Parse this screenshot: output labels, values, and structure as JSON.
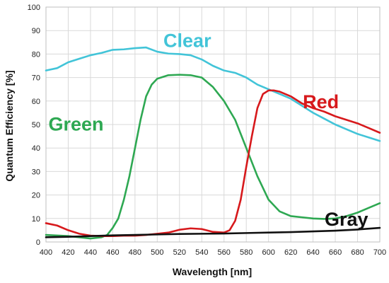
{
  "chart_data": {
    "type": "line",
    "xlabel": "Wavelength [nm]",
    "ylabel": "Quantum Efficiency [%]",
    "xlim": [
      400,
      700
    ],
    "ylim": [
      0,
      100
    ],
    "x_ticks": [
      400,
      420,
      440,
      460,
      480,
      500,
      520,
      540,
      560,
      580,
      600,
      620,
      640,
      660,
      680,
      700
    ],
    "y_ticks": [
      0,
      10,
      20,
      30,
      40,
      50,
      60,
      70,
      80,
      90,
      100
    ],
    "grid": true,
    "legend": "none",
    "series": [
      {
        "name": "Clear",
        "color": "#42c4d8",
        "points": [
          [
            400,
            73
          ],
          [
            410,
            74
          ],
          [
            420,
            76.5
          ],
          [
            430,
            78
          ],
          [
            440,
            79.5
          ],
          [
            450,
            80.5
          ],
          [
            460,
            81.8
          ],
          [
            470,
            82
          ],
          [
            480,
            82.5
          ],
          [
            490,
            82.8
          ],
          [
            500,
            81
          ],
          [
            510,
            80.2
          ],
          [
            520,
            80
          ],
          [
            530,
            79.5
          ],
          [
            540,
            77.7
          ],
          [
            550,
            75
          ],
          [
            560,
            73
          ],
          [
            570,
            72
          ],
          [
            580,
            70
          ],
          [
            590,
            67
          ],
          [
            600,
            65
          ],
          [
            610,
            63
          ],
          [
            620,
            61
          ],
          [
            630,
            58
          ],
          [
            640,
            55
          ],
          [
            650,
            52.5
          ],
          [
            660,
            50
          ],
          [
            670,
            48
          ],
          [
            680,
            46
          ],
          [
            690,
            44.5
          ],
          [
            700,
            43
          ]
        ]
      },
      {
        "name": "Green",
        "color": "#2ea852",
        "points": [
          [
            400,
            3
          ],
          [
            420,
            2.5
          ],
          [
            440,
            1.5
          ],
          [
            450,
            2
          ],
          [
            455,
            3
          ],
          [
            460,
            6
          ],
          [
            465,
            10
          ],
          [
            470,
            18
          ],
          [
            475,
            28
          ],
          [
            480,
            40
          ],
          [
            485,
            52
          ],
          [
            490,
            62
          ],
          [
            495,
            67
          ],
          [
            500,
            69.5
          ],
          [
            510,
            71
          ],
          [
            520,
            71.2
          ],
          [
            530,
            71
          ],
          [
            540,
            70
          ],
          [
            550,
            66
          ],
          [
            560,
            60
          ],
          [
            570,
            52
          ],
          [
            575,
            46
          ],
          [
            580,
            40
          ],
          [
            590,
            28
          ],
          [
            600,
            18
          ],
          [
            610,
            13
          ],
          [
            620,
            11
          ],
          [
            630,
            10.5
          ],
          [
            640,
            10
          ],
          [
            650,
            9.8
          ],
          [
            660,
            10
          ],
          [
            670,
            11
          ],
          [
            680,
            12.5
          ],
          [
            690,
            14.5
          ],
          [
            700,
            16.5
          ]
        ]
      },
      {
        "name": "Red",
        "color": "#d7191c",
        "points": [
          [
            400,
            8
          ],
          [
            410,
            7
          ],
          [
            420,
            5
          ],
          [
            430,
            3.5
          ],
          [
            440,
            2.7
          ],
          [
            450,
            2.5
          ],
          [
            460,
            2.5
          ],
          [
            470,
            2.7
          ],
          [
            480,
            2.7
          ],
          [
            490,
            3
          ],
          [
            500,
            3.5
          ],
          [
            510,
            4
          ],
          [
            520,
            5.2
          ],
          [
            530,
            5.8
          ],
          [
            540,
            5.5
          ],
          [
            550,
            4.3
          ],
          [
            560,
            4
          ],
          [
            565,
            5
          ],
          [
            570,
            9
          ],
          [
            575,
            18
          ],
          [
            580,
            32
          ],
          [
            585,
            45
          ],
          [
            590,
            57
          ],
          [
            595,
            63
          ],
          [
            600,
            64.5
          ],
          [
            605,
            64.5
          ],
          [
            610,
            64
          ],
          [
            620,
            62
          ],
          [
            630,
            59
          ],
          [
            640,
            57
          ],
          [
            650,
            55.5
          ],
          [
            660,
            53.5
          ],
          [
            670,
            52
          ],
          [
            680,
            50.5
          ],
          [
            690,
            48.5
          ],
          [
            700,
            46.5
          ]
        ]
      },
      {
        "name": "Gray",
        "color": "#111111",
        "points": [
          [
            400,
            2
          ],
          [
            420,
            2.2
          ],
          [
            440,
            2.5
          ],
          [
            460,
            2.8
          ],
          [
            480,
            3
          ],
          [
            500,
            3.2
          ],
          [
            520,
            3.4
          ],
          [
            540,
            3.5
          ],
          [
            560,
            3.6
          ],
          [
            580,
            3.8
          ],
          [
            600,
            4
          ],
          [
            620,
            4.2
          ],
          [
            640,
            4.5
          ],
          [
            660,
            4.8
          ],
          [
            680,
            5.3
          ],
          [
            700,
            6
          ]
        ]
      }
    ],
    "annotations": [
      {
        "text": "Clear",
        "x": 527,
        "y": 83,
        "color": "#42c4d8"
      },
      {
        "text": "Green",
        "x": 427,
        "y": 47.5,
        "color": "#2ea852"
      },
      {
        "text": "Red",
        "x": 647,
        "y": 57,
        "color": "#d7191c"
      },
      {
        "text": "Gray",
        "x": 670,
        "y": 7,
        "color": "#111111"
      }
    ]
  }
}
